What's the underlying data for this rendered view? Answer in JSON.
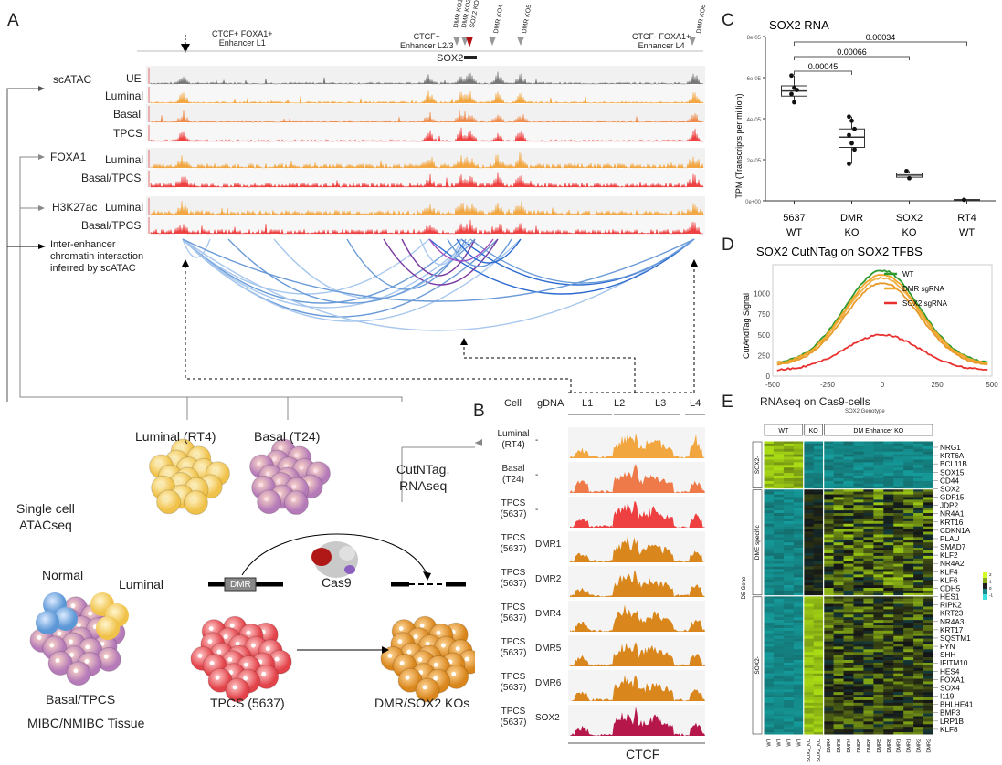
{
  "panels": {
    "A": "A",
    "B": "B",
    "C": "C",
    "D": "D",
    "E": "E"
  },
  "panel_a": {
    "enhancers": [
      {
        "line1": "CTCF+ FOXA1+",
        "line2": "Enhancer L1"
      },
      {
        "line1": "CTCF+",
        "line2": "Enhancer L2/3"
      },
      {
        "line1": "CTCF- FOXA1+",
        "line2": "Enhancer L4"
      }
    ],
    "ko_labels": [
      "DMR KO1",
      "DMR KO2",
      "SOX2 KO",
      "DMR KO4",
      "DMR KO5",
      "DMR KO6"
    ],
    "gene": "SOX2",
    "groups": {
      "scatac": "scATAC",
      "foxa1": "FOXA1",
      "h3k27ac": "H3K27ac"
    },
    "tracks": {
      "ue": "UE",
      "luminal": "Luminal",
      "basal": "Basal",
      "tpcs": "TPCS",
      "luminal2": "Luminal",
      "basal_tpcs": "Basal/TPCS",
      "luminal3": "Luminal",
      "basal_tpcs2": "Basal/TPCS"
    },
    "interaction_label": [
      "Inter-enhancer",
      "chromatin interaction",
      "inferred by scATAC"
    ],
    "cells": {
      "luminal": "Luminal (RT4)",
      "basal": "Basal (T24)",
      "single_cell": [
        "Single cell",
        "ATACseq"
      ],
      "cutntag": [
        "CutNTag,",
        "RNAseq"
      ],
      "normal": "Normal",
      "luminal_tissue": "Luminal",
      "basal_tpcs": "Basal/TPCS",
      "tissue": "MIBC/NMIBC Tissue",
      "tpcs": "TPCS (5637)",
      "dmr": "DMR",
      "cas9": "Cas9",
      "kos": "DMR/SOX2 KOs"
    }
  },
  "panel_b": {
    "headers": {
      "cell": "Cell",
      "gdna": "gDNA",
      "l1": "L1",
      "l2": "L2",
      "l3": "L3",
      "l4": "L4"
    },
    "rows": [
      {
        "cell": [
          "Luminal",
          "(RT4)"
        ],
        "gdna": "-"
      },
      {
        "cell": [
          "Basal",
          "(T24)"
        ],
        "gdna": "-"
      },
      {
        "cell": [
          "TPCS",
          "(5637)"
        ],
        "gdna": "-"
      },
      {
        "cell": [
          "TPCS",
          "(5637)"
        ],
        "gdna": "DMR1"
      },
      {
        "cell": [
          "TPCS",
          "(5637)"
        ],
        "gdna": "DMR2"
      },
      {
        "cell": [
          "TPCS",
          "(5637)"
        ],
        "gdna": "DMR4"
      },
      {
        "cell": [
          "TPCS",
          "(5637)"
        ],
        "gdna": "DMR5"
      },
      {
        "cell": [
          "TPCS",
          "(5637)"
        ],
        "gdna": "DMR6"
      },
      {
        "cell": [
          "TPCS",
          "(5637)"
        ],
        "gdna": "SOX2"
      }
    ],
    "footer": "CTCF",
    "colors": [
      "#f2a640",
      "#ee7a4a",
      "#ee4040",
      "#d9861c",
      "#d9861c",
      "#d9861c",
      "#d9861c",
      "#d9861c",
      "#b5174a"
    ]
  },
  "chart_data": [
    {
      "type": "box",
      "title": "SOX2 RNA",
      "ylabel": "TPM (Transcripts per million)",
      "ylim": [
        0,
        8e-05
      ],
      "yticks": [
        "0e+00",
        "2e-05",
        "4e-05",
        "6e-05",
        "8e-05"
      ],
      "categories": [
        [
          "5637",
          "WT"
        ],
        [
          "DMR",
          "KO"
        ],
        [
          "SOX2",
          "KO"
        ],
        [
          "RT4",
          "WT"
        ]
      ],
      "boxes": [
        {
          "q1": 5.1e-05,
          "median": 5.35e-05,
          "q3": 5.6e-05,
          "min": 4.8e-05,
          "max": 6.1e-05,
          "points": [
            6.1e-05,
            5.5e-05,
            5.4e-05,
            5.2e-05,
            4.8e-05
          ]
        },
        {
          "q1": 2.6e-05,
          "median": 3.1e-05,
          "q3": 3.5e-05,
          "min": 1.8e-05,
          "max": 4.1e-05,
          "points": [
            4.1e-05,
            3.9e-05,
            3.5e-05,
            3.2e-05,
            2.8e-05,
            2.5e-05,
            1.8e-05
          ]
        },
        {
          "q1": 1.15e-05,
          "median": 1.25e-05,
          "q3": 1.35e-05,
          "min": 1.1e-05,
          "max": 1.45e-05,
          "points": [
            1.45e-05,
            1.1e-05
          ]
        },
        {
          "q1": 4e-07,
          "median": 5e-07,
          "q3": 6e-07,
          "min": 3e-07,
          "max": 7e-07,
          "points": [
            5e-07
          ]
        }
      ],
      "pvalues": [
        {
          "text": "0.00034",
          "from": 0,
          "to": 3
        },
        {
          "text": "0.00066",
          "from": 0,
          "to": 2
        },
        {
          "text": "0.00045",
          "from": 0,
          "to": 1
        }
      ]
    },
    {
      "type": "line",
      "title": "SOX2 CutNTag on SOX2 TFBS",
      "xlabel": "",
      "ylabel": "CutAndTag Signal",
      "xlim": [
        -500,
        500
      ],
      "ylim": [
        0,
        1350
      ],
      "xticks": [
        -500,
        -250,
        0,
        250,
        500
      ],
      "yticks": [
        0,
        250,
        500,
        750,
        1000
      ],
      "series": [
        {
          "name": "WT",
          "color": "#2e9a2e",
          "peak": 1280,
          "base": 150
        },
        {
          "name": "DMR sgRNA",
          "color": "#f2a62a",
          "peak": 1230,
          "base": 140
        },
        {
          "name": "SOX2 sgRNA",
          "color": "#e8312f",
          "peak": 500,
          "base": 70
        }
      ],
      "extra_series_colors": [
        "#f0b24a",
        "#e89a2a"
      ]
    }
  ],
  "panel_e": {
    "title": "RNAseq on Cas9-cells",
    "genotype_label": "SOX2 Genotype",
    "groups": [
      "WT",
      "KO",
      "DM Enhancer KO"
    ],
    "row_groups": [
      "SOX2-",
      "DME specific",
      "SOX2-"
    ],
    "side_label": "DE Gene",
    "legend_ticks": [
      "2",
      "1",
      "0",
      "-1"
    ],
    "genes": [
      "NRG1",
      "KRT6A",
      "BCL11B",
      "SOX15",
      "CD44",
      "SOX2",
      "GDF15",
      "JDP2",
      "NR4A1",
      "KRT16",
      "CDKN1A",
      "PLAU",
      "SMAD7",
      "KLF2",
      "NR4A2",
      "KLF4",
      "KLF6",
      "CDH5",
      "HES1",
      "RIPK2",
      "KRT23",
      "NR4A3",
      "KRT17",
      "SQSTM1",
      "FYN",
      "SHH",
      "IFITM10",
      "HES4",
      "FOXA1",
      "SOX4",
      "I119",
      "BHLHE41",
      "BMP3",
      "LRP1B",
      "KLF8"
    ],
    "columns": [
      "WT",
      "WT",
      "WT",
      "WT",
      "SOX2_KO",
      "SOX2_KO",
      "DMR4",
      "DMR6",
      "DMR4",
      "DMR5",
      "DMR6",
      "DMR5",
      "DMR6",
      "DMR1",
      "DMR1",
      "DMR2",
      "DMR2"
    ]
  }
}
